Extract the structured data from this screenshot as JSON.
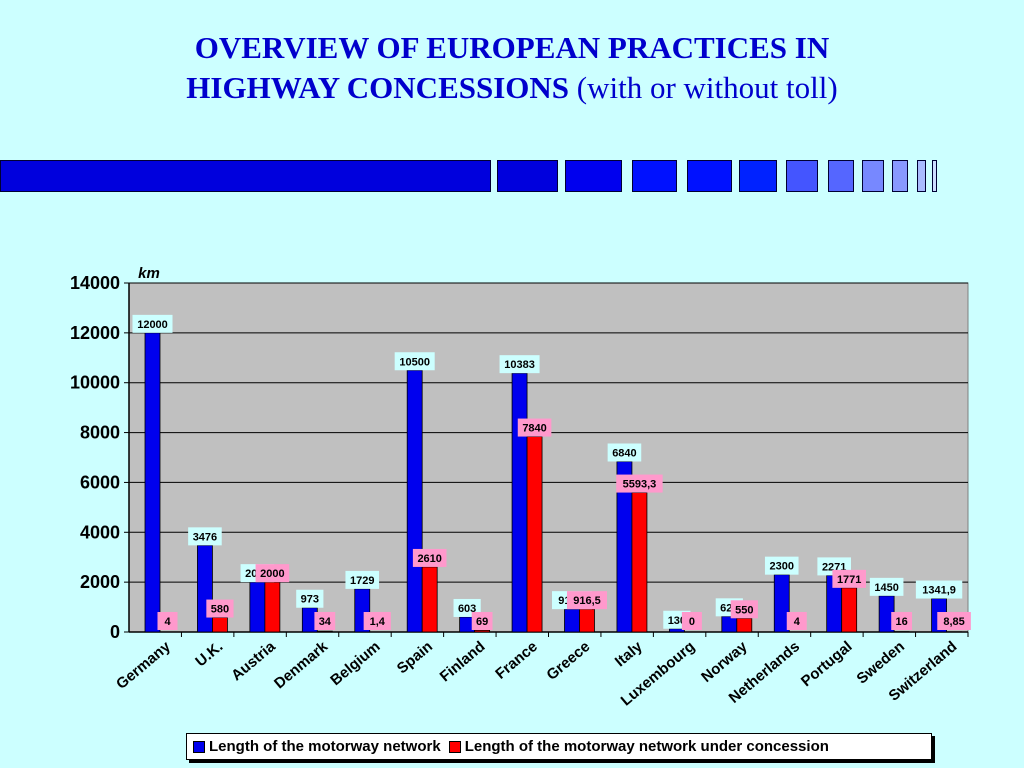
{
  "header": {
    "title_line1": "OVERVIEW OF EUROPEAN PRACTICES IN",
    "title_line2_bold": "HIGHWAY CONCESSIONS ",
    "title_line2_normal": "(with or without toll)"
  },
  "colors": {
    "background": "#ccffff",
    "title": "#0000cc",
    "series1": "#0000ee",
    "series2": "#ff0000",
    "plot_area": "#c0c0c0",
    "label_box1": "#ccffff",
    "label_box2": "#ff99cc"
  },
  "chart_data": {
    "type": "bar",
    "title": "",
    "ylabel": "km",
    "xlabel": "",
    "ylim": [
      0,
      14000
    ],
    "yticks": [
      0,
      2000,
      4000,
      6000,
      8000,
      10000,
      12000,
      14000
    ],
    "grid": true,
    "legend_position": "bottom",
    "categories": [
      "Germany",
      "U.K.",
      "Austria",
      "Denmark",
      "Belgium",
      "Spain",
      "Finland",
      "France",
      "Greece",
      "Italy",
      "Luxembourg",
      "Norway",
      "Netherlands",
      "Portugal",
      "Sweden",
      "Switzerland"
    ],
    "series": [
      {
        "name": "Length of the motorway network",
        "values": [
          12000,
          3476,
          2000,
          973,
          1729,
          10500,
          603,
          10383,
          916.5,
          6840,
          130,
          629,
          2300,
          2271,
          1450,
          1341.9
        ],
        "labels": [
          "12000",
          "3476",
          "2000",
          "973",
          "1729",
          "10500",
          "603",
          "10383",
          "916,5",
          "6840",
          "130",
          "629",
          "2300",
          "2271",
          "1450",
          "1341,9"
        ]
      },
      {
        "name": "Length of the motorway network under concession",
        "values": [
          4,
          580,
          2000,
          34,
          1.4,
          2610,
          69,
          7840,
          916.5,
          5593.3,
          0,
          550,
          4,
          1771,
          16,
          8.85
        ],
        "labels": [
          "4",
          "580",
          "2000",
          "34",
          "1,4",
          "2610",
          "69",
          "7840",
          "916,5",
          "5593,3",
          "0",
          "550",
          "4",
          "1771",
          "16",
          "8,85"
        ]
      }
    ]
  }
}
